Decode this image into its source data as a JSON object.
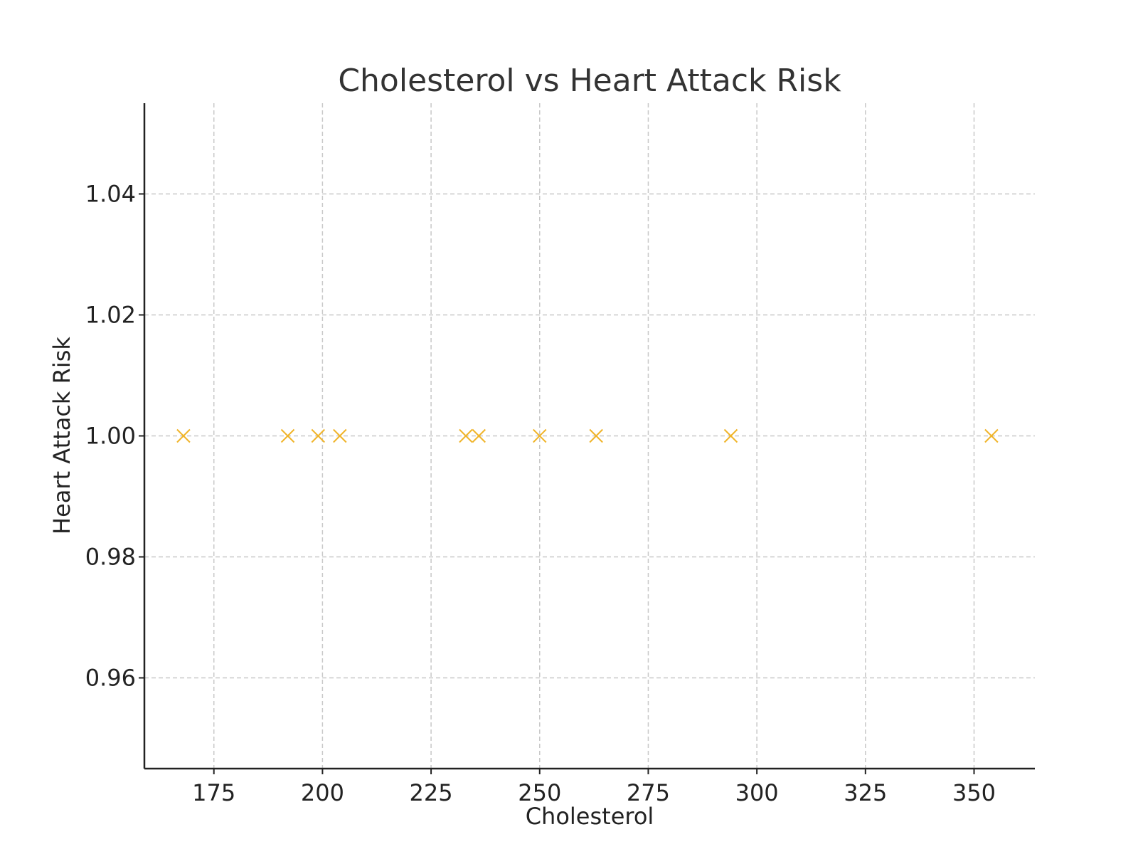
{
  "chart_data": {
    "type": "scatter",
    "title": "Cholesterol vs Heart Attack Risk",
    "xlabel": "Cholesterol",
    "ylabel": "Heart Attack Risk",
    "xlim": [
      159,
      364
    ],
    "ylim": [
      0.945,
      1.055
    ],
    "xticks": [
      175,
      200,
      225,
      250,
      275,
      300,
      325,
      350
    ],
    "xtick_labels": [
      "175",
      "200",
      "225",
      "250",
      "275",
      "300",
      "325",
      "350"
    ],
    "yticks": [
      0.96,
      0.98,
      1.0,
      1.02,
      1.04
    ],
    "ytick_labels": [
      "0.96",
      "0.98",
      "1.00",
      "1.02",
      "1.04"
    ],
    "grid": true,
    "marker": "x",
    "color": "#f0b429",
    "series": [
      {
        "x": [
          168,
          192,
          199,
          204,
          233,
          236,
          250,
          263,
          294,
          354
        ],
        "y": [
          1.0,
          1.0,
          1.0,
          1.0,
          1.0,
          1.0,
          1.0,
          1.0,
          1.0,
          1.0
        ]
      }
    ]
  }
}
